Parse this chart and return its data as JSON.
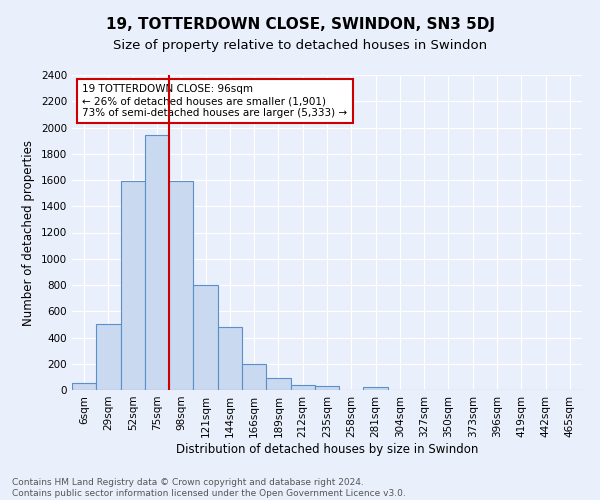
{
  "title": "19, TOTTERDOWN CLOSE, SWINDON, SN3 5DJ",
  "subtitle": "Size of property relative to detached houses in Swindon",
  "xlabel": "Distribution of detached houses by size in Swindon",
  "ylabel": "Number of detached properties",
  "categories": [
    "6sqm",
    "29sqm",
    "52sqm",
    "75sqm",
    "98sqm",
    "121sqm",
    "144sqm",
    "166sqm",
    "189sqm",
    "212sqm",
    "235sqm",
    "258sqm",
    "281sqm",
    "304sqm",
    "327sqm",
    "350sqm",
    "373sqm",
    "396sqm",
    "419sqm",
    "442sqm",
    "465sqm"
  ],
  "values": [
    55,
    500,
    1590,
    1940,
    1590,
    800,
    480,
    195,
    95,
    38,
    28,
    0,
    22,
    0,
    0,
    0,
    0,
    0,
    0,
    0,
    0
  ],
  "bar_color": "#c9d9f0",
  "bar_edge_color": "#5b8fc9",
  "vline_color": "#cc0000",
  "annotation_text": "19 TOTTERDOWN CLOSE: 96sqm\n← 26% of detached houses are smaller (1,901)\n73% of semi-detached houses are larger (5,333) →",
  "annotation_box_color": "white",
  "annotation_box_edge": "#cc0000",
  "ylim": [
    0,
    2400
  ],
  "yticks": [
    0,
    200,
    400,
    600,
    800,
    1000,
    1200,
    1400,
    1600,
    1800,
    2000,
    2200,
    2400
  ],
  "footer": "Contains HM Land Registry data © Crown copyright and database right 2024.\nContains public sector information licensed under the Open Government Licence v3.0.",
  "bg_color": "#eaf0fb",
  "plot_bg_color": "#eaf0fb",
  "grid_color": "white",
  "title_fontsize": 11,
  "subtitle_fontsize": 9.5,
  "axis_label_fontsize": 8.5,
  "tick_fontsize": 7.5,
  "annotation_fontsize": 7.5,
  "footer_fontsize": 6.5
}
